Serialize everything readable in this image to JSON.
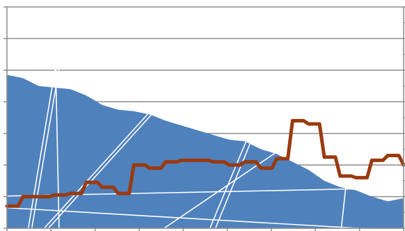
{
  "chart_data": {
    "type": "area",
    "title": "",
    "xlabel": "",
    "ylabel": "",
    "grid": true,
    "legend": "none",
    "x": [
      0,
      4,
      8,
      12,
      16,
      20,
      24,
      28,
      32,
      36,
      40,
      44,
      48,
      52,
      56,
      60,
      64,
      68,
      72,
      76,
      80,
      84,
      88,
      92,
      96,
      100
    ],
    "ylim_left": [
      0,
      7
    ],
    "ylim_right": [
      0,
      14
    ],
    "colors": {
      "area_fill": "#4f81bd",
      "line": "#9a3a0f",
      "grid": "#8c8c8c",
      "overlay_lines": "#ffffff"
    },
    "series": [
      {
        "chart": "area",
        "axis": "left",
        "values": [
          4.85,
          4.75,
          4.5,
          4.45,
          4.4,
          4.2,
          3.9,
          3.75,
          3.7,
          3.6,
          3.4,
          3.25,
          3.1,
          2.95,
          2.8,
          2.75,
          2.5,
          2.35,
          2.1,
          1.85,
          1.5,
          1.3,
          1.2,
          1.0,
          0.85,
          0.95
        ]
      },
      {
        "chart": "line",
        "axis": "right",
        "values": [
          1.4,
          2.0,
          2.0,
          2.1,
          2.2,
          2.9,
          2.6,
          2.2,
          4.0,
          3.8,
          4.2,
          4.3,
          4.3,
          4.2,
          4.0,
          4.2,
          3.8,
          4.4,
          6.8,
          6.6,
          4.5,
          3.3,
          3.2,
          4.3,
          4.6,
          4.0
        ]
      }
    ]
  }
}
